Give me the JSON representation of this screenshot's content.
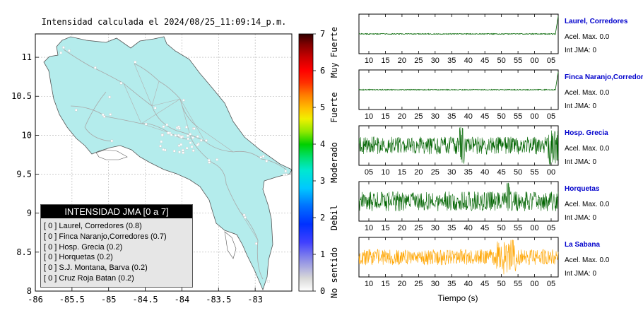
{
  "map": {
    "title": "Intensidad calculada el 2024/08/25_11:09:14_p.m.",
    "xlim": [
      -86,
      -82.5
    ],
    "ylim": [
      8,
      11.3
    ],
    "x_ticks": [
      "-86",
      "-85.5",
      "-85",
      "-84.5",
      "-84",
      "-83.5",
      "-83"
    ],
    "y_ticks": [
      "11",
      "10.5",
      "10",
      "9.5",
      "9",
      "8.5",
      "8"
    ],
    "land_color": "#b4ecec",
    "grid": true
  },
  "colorbar": {
    "ticks": [
      "7",
      "6",
      "5",
      "4",
      "3",
      "2",
      "1",
      "0"
    ],
    "labels": [
      "Muy Fuerte",
      "Fuerte",
      "Moderado",
      "Debil",
      "No sentido"
    ]
  },
  "legend": {
    "title": "INTENSIDAD JMA [0 a 7]",
    "entries": [
      "[ 0 ]  Laurel, Corredores (0.8)",
      "[ 0 ]  Finca Naranjo,Corredores (0.7)",
      "[ 0 ]  Hosp. Grecia (0.2)",
      "[ 0 ]  Horquetas (0.2)",
      "[ 0 ]  S.J. Montana, Barva (0.2)",
      "[ 0 ]  Cruz Roja Batan (0.2)"
    ]
  },
  "chart_data": [
    {
      "type": "line",
      "name": "Laurel, Corredores",
      "color": "#006400",
      "acel_label": "Acel. Max. 0.0",
      "jma_label": "Int JMA: 0",
      "x_ticks": [
        "10",
        "15",
        "20",
        "25",
        "30",
        "35",
        "40",
        "45",
        "50",
        "55",
        "00",
        "05"
      ],
      "amplitude": 0.05
    },
    {
      "type": "line",
      "name": "Finca Naranjo,Corredores",
      "color": "#006400",
      "acel_label": "Acel. Max. 0.0",
      "jma_label": "Int JMA: 0",
      "x_ticks": [
        "10",
        "15",
        "20",
        "25",
        "30",
        "35",
        "40",
        "45",
        "50",
        "55",
        "00",
        "05"
      ],
      "amplitude": 0.05
    },
    {
      "type": "line",
      "name": "Hosp. Grecia",
      "color": "#006400",
      "acel_label": "Acel. Max. 0.0",
      "jma_label": "Int JMA: 0",
      "x_ticks": [
        "05",
        "10",
        "15",
        "20",
        "25",
        "30",
        "35",
        "40",
        "45",
        "50",
        "55",
        "00"
      ],
      "amplitude": 0.45
    },
    {
      "type": "line",
      "name": "Horquetas",
      "color": "#006400",
      "acel_label": "Acel. Max. 0.0",
      "jma_label": "Int JMA: 0",
      "x_ticks": [
        "10",
        "15",
        "20",
        "25",
        "30",
        "35",
        "40",
        "45",
        "50",
        "55",
        "00",
        "05"
      ],
      "amplitude": 0.5
    },
    {
      "type": "line",
      "name": "La Sabana",
      "color": "#ffa500",
      "acel_label": "Acel. Max. 0.0",
      "jma_label": "Int JMA: 0",
      "x_ticks": [
        "10",
        "15",
        "20",
        "25",
        "30",
        "35",
        "40",
        "45",
        "50",
        "55",
        "00",
        "05"
      ],
      "amplitude": 0.4
    }
  ],
  "xlabel": "Tiempo (s)"
}
